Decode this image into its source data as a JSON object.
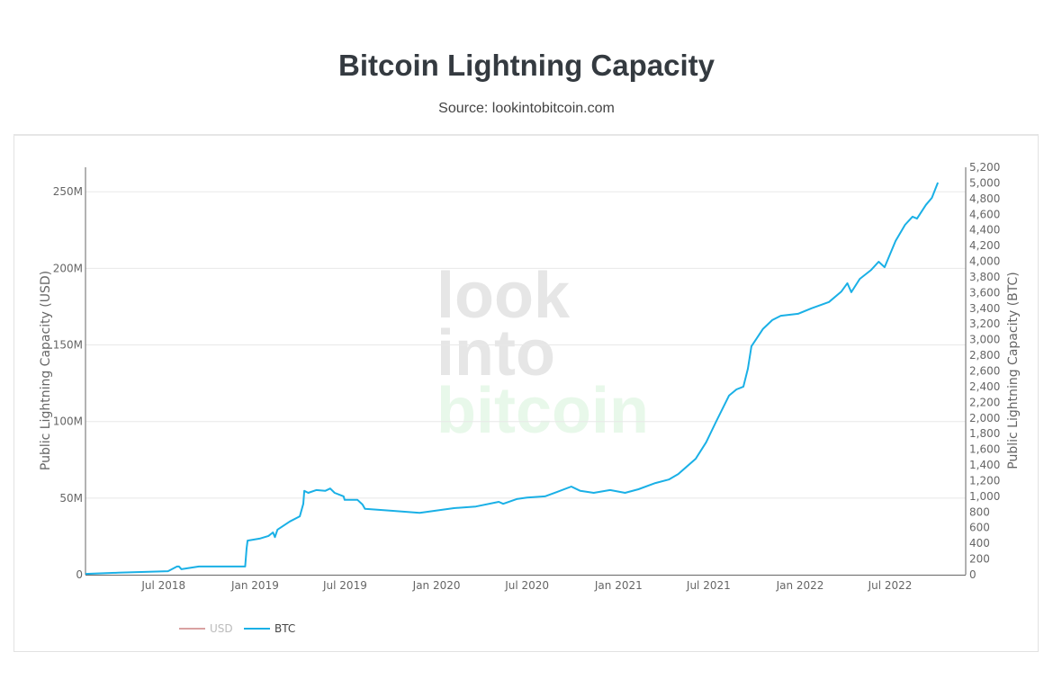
{
  "header": {
    "title": "Bitcoin Lightning Capacity",
    "subtitle": "Source: lookintobitcoin.com"
  },
  "watermark": {
    "line1": "look",
    "line2": "into",
    "line3": "bitcoin"
  },
  "chart_data": {
    "type": "line",
    "title": "Bitcoin Lightning Capacity",
    "subtitle": "Source: lookintobitcoin.com",
    "xlabel": "",
    "ylabel_left": "Public Lightning Capacity (USD)",
    "ylabel_right": "Public Lightning Capacity (BTC)",
    "x_ticks": [
      "Jul 2018",
      "Jan 2019",
      "Jul 2019",
      "Jan 2020",
      "Jul 2020",
      "Jan 2021",
      "Jul 2021",
      "Jan 2022",
      "Jul 2022"
    ],
    "x_tick_dates": [
      "2018-07-01",
      "2019-01-01",
      "2019-07-01",
      "2020-01-01",
      "2020-07-01",
      "2021-01-01",
      "2021-07-01",
      "2022-01-01",
      "2022-07-01"
    ],
    "xlim": [
      "2018-01-25",
      "2022-11-30"
    ],
    "y_left_ticks": [
      "0",
      "50M",
      "100M",
      "150M",
      "200M",
      "250M"
    ],
    "y_left_tick_values": [
      0,
      50000000,
      100000000,
      150000000,
      200000000,
      250000000
    ],
    "ylim_left": [
      0,
      266000000
    ],
    "y_right_ticks": [
      "0",
      "200",
      "400",
      "600",
      "800",
      "1,000",
      "1,200",
      "1,400",
      "1,600",
      "1,800",
      "2,000",
      "2,200",
      "2,400",
      "2,600",
      "2,800",
      "3,000",
      "3,200",
      "3,400",
      "3,600",
      "3,800",
      "4,000",
      "4,200",
      "4,400",
      "4,600",
      "4,800",
      "5,000",
      "5,200"
    ],
    "y_right_tick_values": [
      0,
      200,
      400,
      600,
      800,
      1000,
      1200,
      1400,
      1600,
      1800,
      2000,
      2200,
      2400,
      2600,
      2800,
      3000,
      3200,
      3400,
      3600,
      3800,
      4000,
      4200,
      4400,
      4600,
      4800,
      5000,
      5200
    ],
    "ylim_right": [
      0,
      5200
    ],
    "grid": true,
    "legend": {
      "placement": "bottom-left",
      "orientation": "horizontal"
    },
    "series": [
      {
        "name": "USD",
        "axis": "left",
        "color": "#d08c8c",
        "visible": false,
        "x": [],
        "values": []
      },
      {
        "name": "BTC",
        "axis": "right",
        "color": "#1ab0e6",
        "visible": true,
        "x": [
          "2018-01-25",
          "2018-04-01",
          "2018-07-10",
          "2018-07-28",
          "2018-08-01",
          "2018-08-06",
          "2018-08-16",
          "2018-09-10",
          "2018-11-10",
          "2018-12-12",
          "2018-12-15",
          "2018-12-17",
          "2019-01-10",
          "2019-01-28",
          "2019-02-06",
          "2019-02-10",
          "2019-02-15",
          "2019-03-12",
          "2019-04-01",
          "2019-04-08",
          "2019-04-10",
          "2019-04-18",
          "2019-05-04",
          "2019-05-22",
          "2019-06-01",
          "2019-06-10",
          "2019-06-28",
          "2019-06-30",
          "2019-07-26",
          "2019-08-05",
          "2019-08-10",
          "2019-10-05",
          "2019-11-28",
          "2020-02-05",
          "2020-03-20",
          "2020-05-05",
          "2020-05-14",
          "2020-06-10",
          "2020-07-01",
          "2020-08-06",
          "2020-08-30",
          "2020-09-28",
          "2020-10-16",
          "2020-11-12",
          "2020-12-15",
          "2021-01-14",
          "2021-02-10",
          "2021-03-16",
          "2021-04-12",
          "2021-05-01",
          "2021-06-05",
          "2021-06-26",
          "2021-07-15",
          "2021-08-11",
          "2021-08-26",
          "2021-09-09",
          "2021-09-18",
          "2021-09-25",
          "2021-10-05",
          "2021-10-18",
          "2021-11-06",
          "2021-11-23",
          "2021-12-28",
          "2022-01-24",
          "2022-02-28",
          "2022-03-25",
          "2022-04-06",
          "2022-04-14",
          "2022-05-01",
          "2022-05-24",
          "2022-06-08",
          "2022-06-20",
          "2022-07-12",
          "2022-07-31",
          "2022-08-15",
          "2022-08-24",
          "2022-09-11",
          "2022-09-23",
          "2022-10-05"
        ],
        "values": [
          10,
          25,
          45,
          105,
          105,
          70,
          80,
          105,
          105,
          105,
          335,
          435,
          460,
          495,
          540,
          480,
          575,
          680,
          745,
          905,
          1070,
          1045,
          1080,
          1070,
          1100,
          1045,
          1000,
          955,
          955,
          895,
          840,
          815,
          790,
          850,
          870,
          930,
          905,
          965,
          985,
          1000,
          1055,
          1125,
          1070,
          1045,
          1080,
          1045,
          1090,
          1170,
          1215,
          1285,
          1480,
          1690,
          1940,
          2285,
          2365,
          2400,
          2630,
          2915,
          3010,
          3135,
          3250,
          3305,
          3330,
          3400,
          3480,
          3615,
          3720,
          3605,
          3775,
          3890,
          3995,
          3925,
          4260,
          4465,
          4570,
          4545,
          4720,
          4810,
          5005
        ]
      }
    ]
  }
}
